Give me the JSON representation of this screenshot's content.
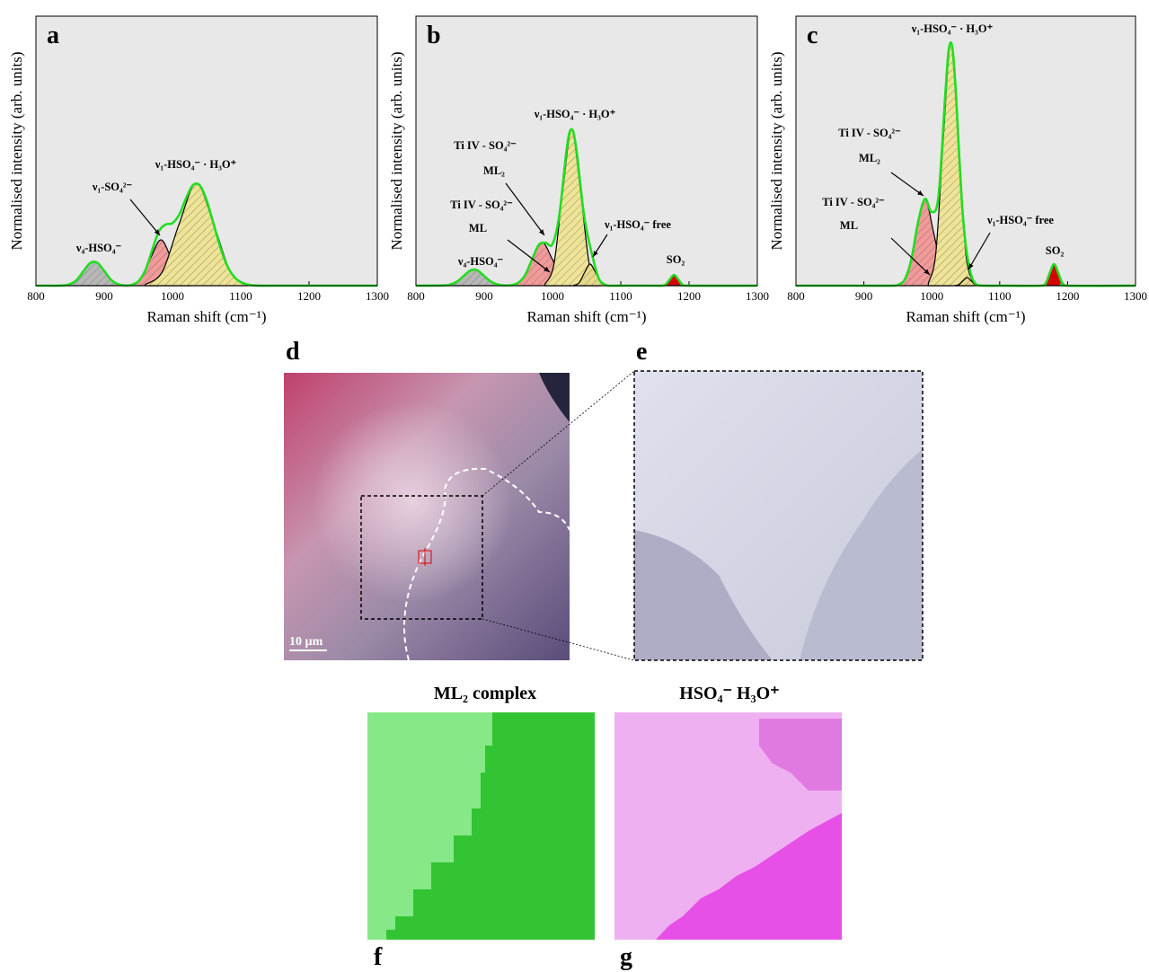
{
  "chart_data": [
    {
      "type": "line",
      "panel": "a",
      "xlabel": "Raman shift (cm⁻¹)",
      "ylabel": "Normalised intensity (arb. units)",
      "xlim": [
        800,
        1300
      ],
      "xticks": [
        800,
        900,
        1000,
        1100,
        1200,
        1300
      ],
      "ylim": [
        0,
        1
      ],
      "annotations": [
        "ν₄-HSO₄⁻",
        "ν₁-SO₄²⁻",
        "ν₁-HSO₄⁻ · H₃O⁺"
      ],
      "series": [
        {
          "color": "#22dd22",
          "x": [
            800,
            810,
            820,
            830,
            840,
            850,
            860,
            870,
            880,
            890,
            900,
            910,
            920,
            930,
            940,
            950,
            960,
            970,
            980,
            990,
            1000,
            1010,
            1020,
            1030,
            1040,
            1050,
            1060,
            1070,
            1080,
            1090,
            1100,
            1110,
            1120,
            1130,
            1140,
            1150,
            1160,
            1170,
            1180,
            1190,
            1200,
            1210,
            1220,
            1230,
            1240,
            1250,
            1260,
            1270,
            1280,
            1290,
            1300
          ],
          "values": [
            0,
            0,
            0,
            0,
            0.001,
            0.006,
            0.022,
            0.055,
            0.085,
            0.085,
            0.055,
            0.022,
            0.006,
            0.001,
            0.003,
            0.016,
            0.056,
            0.13,
            0.201,
            0.227,
            0.232,
            0.264,
            0.325,
            0.373,
            0.372,
            0.317,
            0.231,
            0.143,
            0.075,
            0.034,
            0.013,
            0.004,
            0.001,
            0,
            0,
            0,
            0,
            0,
            0,
            0,
            0,
            0,
            0,
            0,
            0,
            0,
            0,
            0,
            0,
            0,
            0
          ]
        },
        {
          "color": "#b8b8b8",
          "x": [
            840,
            855,
            870,
            885,
            900,
            915,
            930
          ],
          "values": [
            0.001,
            0.012,
            0.055,
            0.09,
            0.055,
            0.012,
            0.001
          ]
        },
        {
          "color": "#f29a9a",
          "x": [
            938,
            953,
            968,
            983,
            998,
            1013,
            1028
          ],
          "values": [
            0.002,
            0.023,
            0.103,
            0.17,
            0.103,
            0.023,
            0.002
          ]
        },
        {
          "color": "#efe396",
          "x": [
            960,
            985,
            1010,
            1035,
            1060,
            1085,
            1110
          ],
          "values": [
            0.004,
            0.051,
            0.231,
            0.38,
            0.231,
            0.051,
            0.004
          ]
        }
      ]
    },
    {
      "type": "line",
      "panel": "b",
      "xlabel": "Raman shift (cm⁻¹)",
      "ylabel": "Normalised intensity (arb. units)",
      "xlim": [
        800,
        1300
      ],
      "xticks": [
        800,
        900,
        1000,
        1100,
        1200,
        1300
      ],
      "ylim": [
        0,
        1
      ],
      "annotations": [
        "ν₄-HSO₄⁻",
        "Ti IV - SO₄²⁻",
        "ML₂",
        "Ti IV - SO₄²⁻",
        "ML",
        "ν₁-HSO₄⁻ · H₃O⁺",
        "ν₁-HSO₄⁻ free",
        "SO₂"
      ],
      "series": [
        {
          "color": "#22dd22",
          "x": [
            800,
            840,
            850,
            860,
            870,
            880,
            890,
            900,
            910,
            920,
            930,
            940,
            950,
            960,
            970,
            980,
            990,
            1000,
            1010,
            1020,
            1025,
            1030,
            1035,
            1040,
            1045,
            1050,
            1055,
            1060,
            1065,
            1070,
            1080,
            1090,
            1100,
            1150,
            1160,
            1166,
            1172,
            1178,
            1184,
            1190,
            1200,
            1300
          ],
          "values": [
            0,
            0.001,
            0.004,
            0.015,
            0.036,
            0.057,
            0.057,
            0.036,
            0.015,
            0.004,
            0.001,
            0.002,
            0.011,
            0.04,
            0.097,
            0.152,
            0.159,
            0.154,
            0.262,
            0.491,
            0.569,
            0.574,
            0.506,
            0.393,
            0.284,
            0.205,
            0.147,
            0.094,
            0.047,
            0.017,
            0.001,
            0,
            0,
            0,
            0,
            0.005,
            0.024,
            0.04,
            0.024,
            0.005,
            0,
            0
          ]
        },
        {
          "color": "#b8b8b8",
          "x": [
            840,
            855,
            870,
            885,
            900,
            915,
            930
          ],
          "values": [
            0.001,
            0.008,
            0.036,
            0.06,
            0.036,
            0.008,
            0.001
          ]
        },
        {
          "color": "#f29a9a",
          "x": [
            940,
            955,
            970,
            985,
            1000,
            1015,
            1030
          ],
          "values": [
            0.002,
            0.022,
            0.097,
            0.16,
            0.097,
            0.022,
            0.002
          ]
        },
        {
          "color": "#efe396",
          "x": [
            989,
            1002,
            1015,
            1028,
            1041,
            1054,
            1067
          ],
          "values": [
            0.006,
            0.078,
            0.352,
            0.58,
            0.352,
            0.078,
            0.006
          ]
        },
        {
          "color": "#e6d98a",
          "x": [
            1031,
            1039,
            1047,
            1055,
            1063,
            1071,
            1079
          ],
          "values": [
            0.001,
            0.011,
            0.049,
            0.08,
            0.049,
            0.011,
            0.001
          ]
        },
        {
          "color": "#d40000",
          "x": [
            1160,
            1166,
            1172,
            1178,
            1184,
            1190,
            1196
          ],
          "values": [
            0,
            0.005,
            0.024,
            0.04,
            0.024,
            0.005,
            0
          ]
        }
      ]
    },
    {
      "type": "line",
      "panel": "c",
      "xlabel": "Raman shift (cm⁻¹)",
      "ylabel": "Normalised intensity (arb. units)",
      "xlim": [
        800,
        1300
      ],
      "xticks": [
        800,
        900,
        1000,
        1100,
        1200,
        1300
      ],
      "ylim": [
        0,
        1
      ],
      "annotations": [
        "ν₁-HSO₄⁻ · H₃O⁺",
        "Ti IV - SO₄²⁻",
        "ML₂",
        "Ti IV - SO₄²⁻",
        "ML",
        "ν₁-HSO₄⁻ free",
        "SO₂"
      ],
      "series": [
        {
          "color": "#22dd22",
          "x": [
            800,
            900,
            940,
            950,
            960,
            970,
            980,
            990,
            1000,
            1010,
            1020,
            1025,
            1030,
            1035,
            1040,
            1045,
            1050,
            1055,
            1060,
            1065,
            1070,
            1080,
            1100,
            1160,
            1168,
            1174,
            1180,
            1186,
            1192,
            1200,
            1300
          ],
          "values": [
            0,
            0,
            0,
            0.003,
            0.022,
            0.098,
            0.238,
            0.322,
            0.273,
            0.334,
            0.713,
            0.876,
            0.888,
            0.736,
            0.5,
            0.287,
            0.15,
            0.07,
            0.025,
            0.006,
            0.001,
            0,
            0,
            0,
            0.011,
            0.049,
            0.08,
            0.049,
            0.011,
            0,
            0
          ]
        },
        {
          "color": "#f29a9a",
          "x": [
            951,
            964,
            977,
            990,
            1003,
            1016,
            1029
          ],
          "values": [
            0.004,
            0.043,
            0.194,
            0.32,
            0.194,
            0.043,
            0.004
          ]
        },
        {
          "color": "#efe396",
          "x": [
            995,
            1006,
            1017,
            1028,
            1039,
            1050,
            1061
          ],
          "values": [
            0.01,
            0.122,
            0.546,
            0.9,
            0.546,
            0.122,
            0.01
          ]
        },
        {
          "color": "#e6d98a",
          "x": [
            1034,
            1040,
            1046,
            1052,
            1058,
            1064,
            1070
          ],
          "values": [
            0,
            0.004,
            0.018,
            0.03,
            0.018,
            0.004,
            0
          ]
        },
        {
          "color": "#d40000",
          "x": [
            1162,
            1168,
            1174,
            1180,
            1186,
            1192,
            1198
          ],
          "values": [
            0,
            0.011,
            0.049,
            0.08,
            0.049,
            0.011,
            0
          ]
        }
      ]
    }
  ],
  "images": [
    {
      "label": "d",
      "scale_bar": "10 µm"
    },
    {
      "label": "e"
    },
    {
      "label": "f",
      "title": "ML₂ complex"
    },
    {
      "label": "g",
      "title": "HSO₄⁻ H₃O⁺"
    }
  ]
}
